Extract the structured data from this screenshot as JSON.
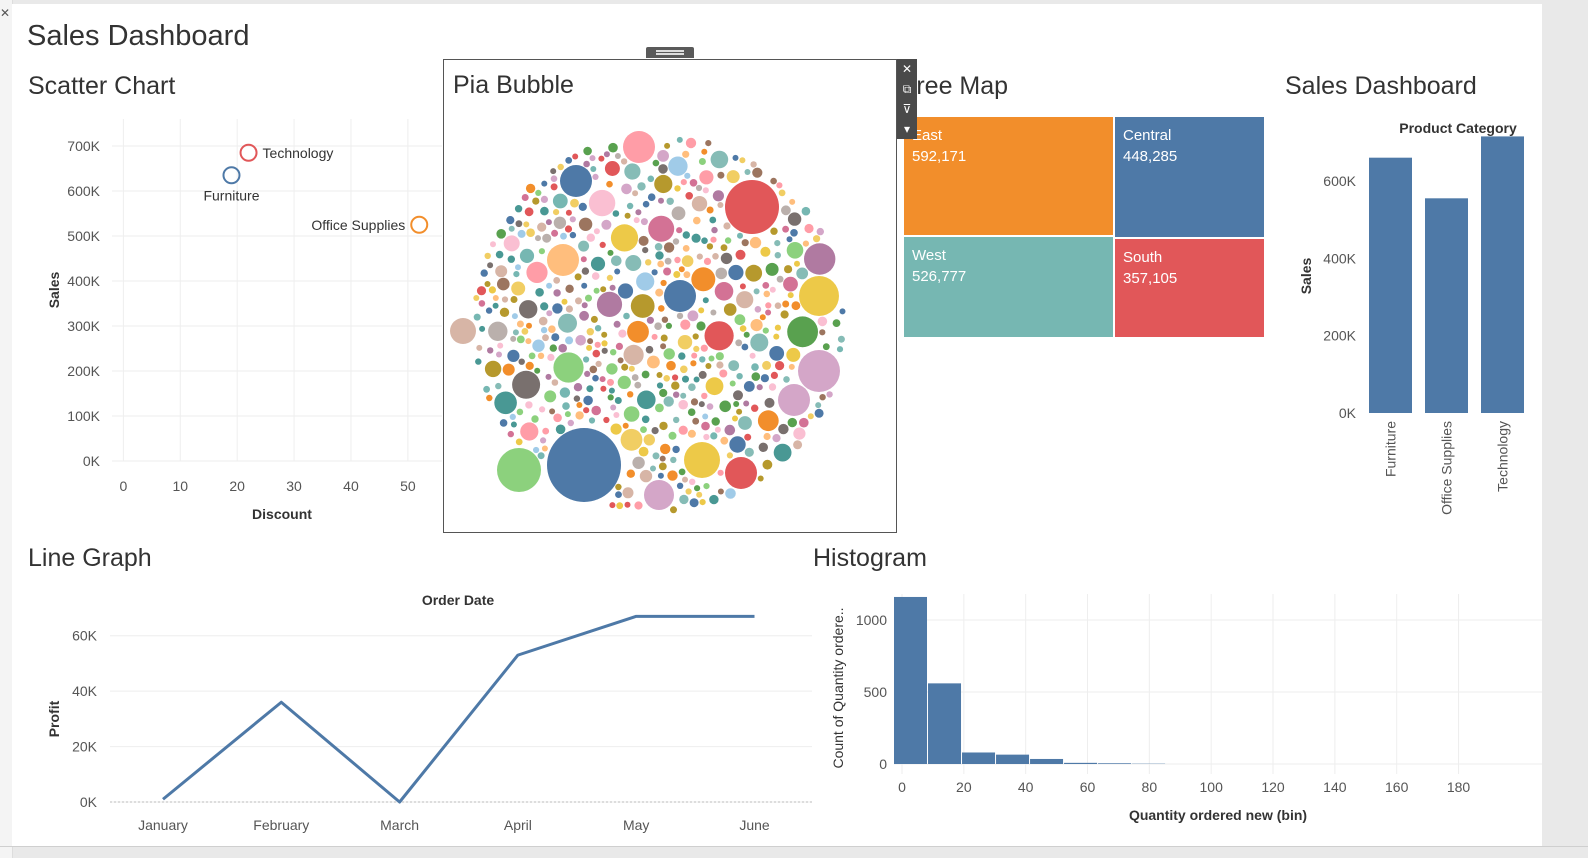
{
  "dashboard": {
    "title": "Sales Dashboard"
  },
  "sections": {
    "scatter": "Scatter Chart",
    "pia_bubble": "Pia Bubble",
    "tree_map": "Tree Map",
    "bar": "Sales Dashboard",
    "line": "Line Graph",
    "histogram": "Histogram"
  },
  "colors": {
    "blue": "#4e79a7",
    "orange": "#f28e2b",
    "teal": "#76b7b2",
    "red": "#e15759",
    "green": "#59a14f",
    "yellow": "#edc948"
  },
  "toolbar_icons": [
    "close-icon",
    "pop-out-icon",
    "filter-icon",
    "more-options-icon"
  ],
  "chart_data": [
    {
      "id": "scatter",
      "type": "scatter",
      "xlabel": "Discount",
      "ylabel": "Sales",
      "xlim": [
        -2,
        56
      ],
      "ylim": [
        0,
        760000
      ],
      "xticks": [
        0,
        10,
        20,
        30,
        40,
        50
      ],
      "yticks": [
        0,
        100000,
        200000,
        300000,
        400000,
        500000,
        600000,
        700000
      ],
      "ytick_labels": [
        "0K",
        "100K",
        "200K",
        "300K",
        "400K",
        "500K",
        "600K",
        "700K"
      ],
      "points": [
        {
          "label": "Technology",
          "x": 22,
          "y": 685000,
          "color": "#e15759"
        },
        {
          "label": "Furniture",
          "x": 19,
          "y": 635000,
          "color": "#4e79a7"
        },
        {
          "label": "Office Supplies",
          "x": 52,
          "y": 525000,
          "color": "#f28e2b"
        }
      ]
    },
    {
      "id": "treemap",
      "type": "treemap",
      "items": [
        {
          "label": "East",
          "value": "592,171",
          "color": "#f28e2b"
        },
        {
          "label": "Central",
          "value": "448,285",
          "color": "#4e79a7"
        },
        {
          "label": "West",
          "value": "526,777",
          "color": "#76b7b2"
        },
        {
          "label": "South",
          "value": "357,105",
          "color": "#e15759"
        }
      ]
    },
    {
      "id": "bar",
      "type": "bar",
      "title": "Product Category",
      "ylabel": "Sales",
      "categories": [
        "Furniture",
        "Office Supplies",
        "Technology"
      ],
      "values": [
        660000,
        555000,
        715000
      ],
      "ylim": [
        0,
        760000
      ],
      "yticks": [
        0,
        200000,
        400000,
        600000
      ],
      "ytick_labels": [
        "0K",
        "200K",
        "400K",
        "600K"
      ],
      "color": "#4e79a7"
    },
    {
      "id": "line",
      "type": "line",
      "title": "Order Date",
      "ylabel": "Profit",
      "categories": [
        "January",
        "February",
        "March",
        "April",
        "May",
        "June"
      ],
      "values": [
        1000,
        36000,
        0,
        53000,
        67000,
        67000
      ],
      "ylim": [
        0,
        70000
      ],
      "yticks": [
        0,
        20000,
        40000,
        60000
      ],
      "ytick_labels": [
        "0K",
        "20K",
        "40K",
        "60K"
      ],
      "color": "#4e79a7"
    },
    {
      "id": "histogram",
      "type": "bar",
      "xlabel": "Quantity ordered new (bin)",
      "ylabel": "Count of Quantity ordere..",
      "bin_width": 11,
      "bins": [
        0,
        11,
        22,
        33,
        44,
        55,
        66,
        77
      ],
      "values": [
        1160,
        560,
        80,
        65,
        35,
        8,
        5,
        2
      ],
      "xlim": [
        0,
        185
      ],
      "ylim": [
        0,
        1250
      ],
      "xticks": [
        0,
        20,
        40,
        60,
        80,
        100,
        120,
        140,
        160,
        180
      ],
      "yticks": [
        0,
        500,
        1000
      ],
      "color": "#4e79a7"
    }
  ]
}
